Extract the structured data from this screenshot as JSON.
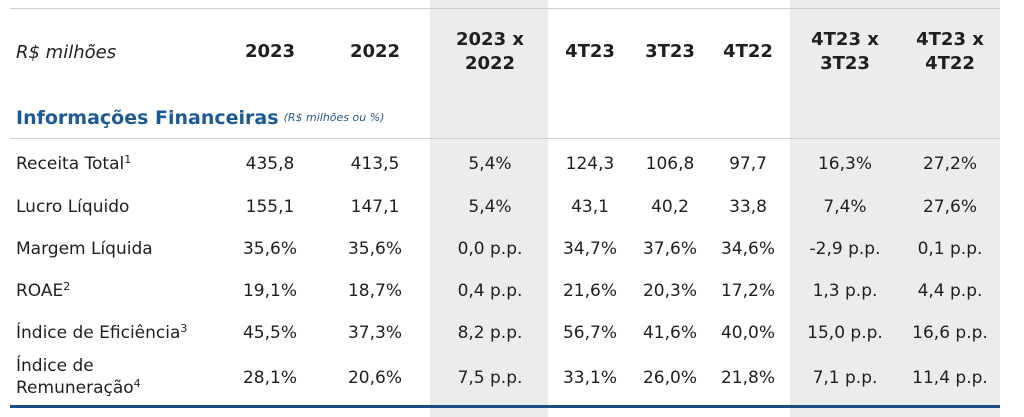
{
  "header": {
    "unit_label": "R$ milhões",
    "columns": [
      {
        "line1": "2023",
        "line2": ""
      },
      {
        "line1": "2022",
        "line2": ""
      },
      {
        "line1": "2023 x",
        "line2": "2022"
      },
      {
        "line1": "4T23",
        "line2": ""
      },
      {
        "line1": "3T23",
        "line2": ""
      },
      {
        "line1": "4T22",
        "line2": ""
      },
      {
        "line1": "4T23 x",
        "line2": "3T23"
      },
      {
        "line1": "4T23 x",
        "line2": "4T22"
      }
    ]
  },
  "section": {
    "title": "Informações Financeiras",
    "subtitle": "(R$ milhões ou %)"
  },
  "rows": [
    {
      "label": "Receita Total",
      "label2": "",
      "sup": "1",
      "values": [
        "435,8",
        "413,5",
        "5,4%",
        "124,3",
        "106,8",
        "97,7",
        "16,3%",
        "27,2%"
      ]
    },
    {
      "label": "Lucro Líquido",
      "label2": "",
      "sup": "",
      "values": [
        "155,1",
        "147,1",
        "5,4%",
        "43,1",
        "40,2",
        "33,8",
        "7,4%",
        "27,6%"
      ]
    },
    {
      "label": "Margem Líquida",
      "label2": "",
      "sup": "",
      "values": [
        "35,6%",
        "35,6%",
        "0,0 p.p.",
        "34,7%",
        "37,6%",
        "34,6%",
        "-2,9 p.p.",
        "0,1 p.p."
      ]
    },
    {
      "label": "ROAE",
      "label2": "",
      "sup": "2",
      "values": [
        "19,1%",
        "18,7%",
        "0,4 p.p.",
        "21,6%",
        "20,3%",
        "17,2%",
        "1,3 p.p.",
        "4,4 p.p."
      ]
    },
    {
      "label": "Índice de Eficiência",
      "label2": "",
      "sup": "3",
      "values": [
        "45,5%",
        "37,3%",
        "8,2 p.p.",
        "56,7%",
        "41,6%",
        "40,0%",
        "15,0 p.p.",
        "16,6 p.p."
      ]
    },
    {
      "label": "Índice de",
      "label2": "Remuneração",
      "sup": "4",
      "values": [
        "28,1%",
        "20,6%",
        "7,5 p.p.",
        "33,1%",
        "26,0%",
        "21,8%",
        "7,1 p.p.",
        "11,4 p.p."
      ]
    }
  ]
}
